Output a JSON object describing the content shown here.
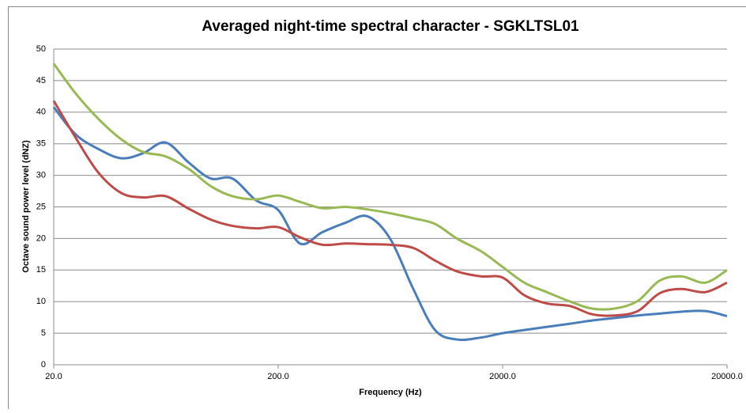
{
  "chart_data": {
    "type": "line",
    "title": "Averaged night-time spectral character - SGKLTSL01",
    "xlabel": "Frequency (Hz)",
    "ylabel": "Octave sound power level (dNZ)",
    "x": [
      20,
      25,
      31.5,
      40,
      50,
      63,
      80,
      100,
      125,
      160,
      200,
      250,
      315,
      400,
      500,
      630,
      800,
      1000,
      1250,
      1600,
      2000,
      2500,
      3150,
      4000,
      5000,
      6300,
      8000,
      10000,
      12500,
      16000,
      20000
    ],
    "series": [
      {
        "color": "#4a7ebb",
        "values": [
          40.8,
          36.5,
          34.2,
          32.7,
          33.5,
          35.2,
          32,
          29.5,
          29.5,
          26,
          24.5,
          19.2,
          21,
          22.5,
          23.5,
          20,
          12,
          5.5,
          4,
          4.3,
          5,
          5.5,
          6,
          6.5,
          7,
          7.4,
          7.8,
          8.1,
          8.4,
          8.5,
          7.7
        ]
      },
      {
        "color": "#be4b48",
        "values": [
          41.8,
          36,
          30.5,
          27.2,
          26.5,
          26.7,
          24.7,
          23,
          22,
          21.6,
          21.8,
          20.2,
          19,
          19.2,
          19.1,
          19,
          18.5,
          16.5,
          14.8,
          14,
          13.8,
          11,
          9.7,
          9.3,
          8,
          7.8,
          8.5,
          11.3,
          12,
          11.5,
          13
        ]
      },
      {
        "color": "#98b954",
        "values": [
          47.7,
          43,
          39,
          35.7,
          33.7,
          33,
          31,
          28.3,
          26.7,
          26.2,
          26.8,
          25.8,
          24.8,
          25,
          24.6,
          24,
          23.2,
          22.3,
          20,
          18,
          15.5,
          13,
          11.5,
          10,
          8.9,
          8.9,
          10.1,
          13.3,
          14,
          13,
          15
        ]
      }
    ],
    "xscale": "log",
    "xlim": [
      20,
      20000
    ],
    "xticks": [
      {
        "value": 20,
        "label": "20.0"
      },
      {
        "value": 200,
        "label": "200.0"
      },
      {
        "value": 2000,
        "label": "2000.0"
      },
      {
        "value": 20000,
        "label": "20000.0"
      }
    ],
    "ylim": [
      0,
      50
    ],
    "yticks": [
      0,
      5,
      10,
      15,
      20,
      25,
      30,
      35,
      40,
      45,
      50
    ],
    "grid": true
  }
}
